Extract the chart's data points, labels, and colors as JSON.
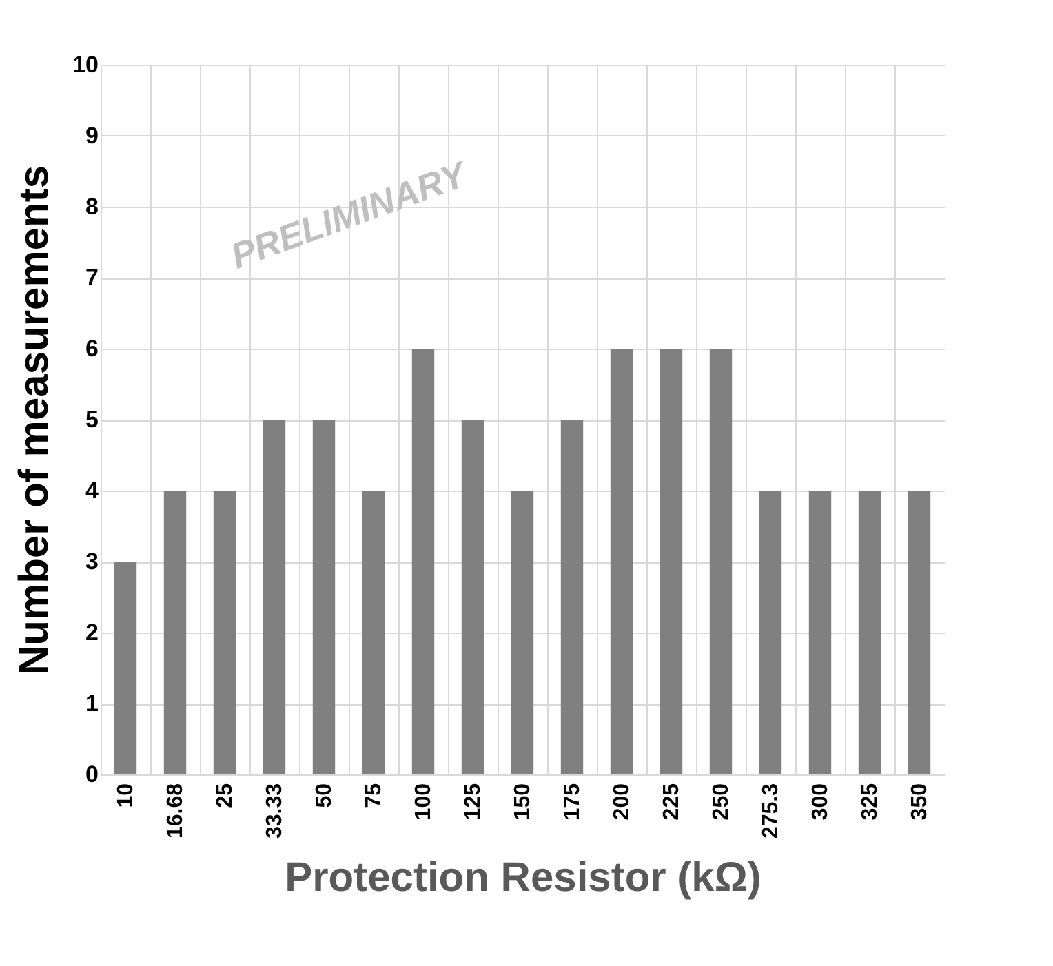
{
  "chart_data": {
    "type": "bar",
    "xlabel": "Protection Resistor (kΩ)",
    "ylabel": "Number of measurements",
    "categories": [
      "10",
      "16.68",
      "25",
      "33.33",
      "50",
      "75",
      "100",
      "125",
      "150",
      "175",
      "200",
      "225",
      "250",
      "275.3",
      "300",
      "325",
      "350"
    ],
    "values": [
      3,
      4,
      4,
      5,
      5,
      4,
      6,
      5,
      4,
      5,
      6,
      6,
      6,
      4,
      4,
      4,
      4
    ],
    "color": "#808080",
    "ylim": [
      0,
      10
    ],
    "yticks": [
      0,
      1,
      2,
      3,
      4,
      5,
      6,
      7,
      8,
      9,
      10
    ],
    "grid": true,
    "annotations": [
      "PRELIMINARY"
    ]
  }
}
